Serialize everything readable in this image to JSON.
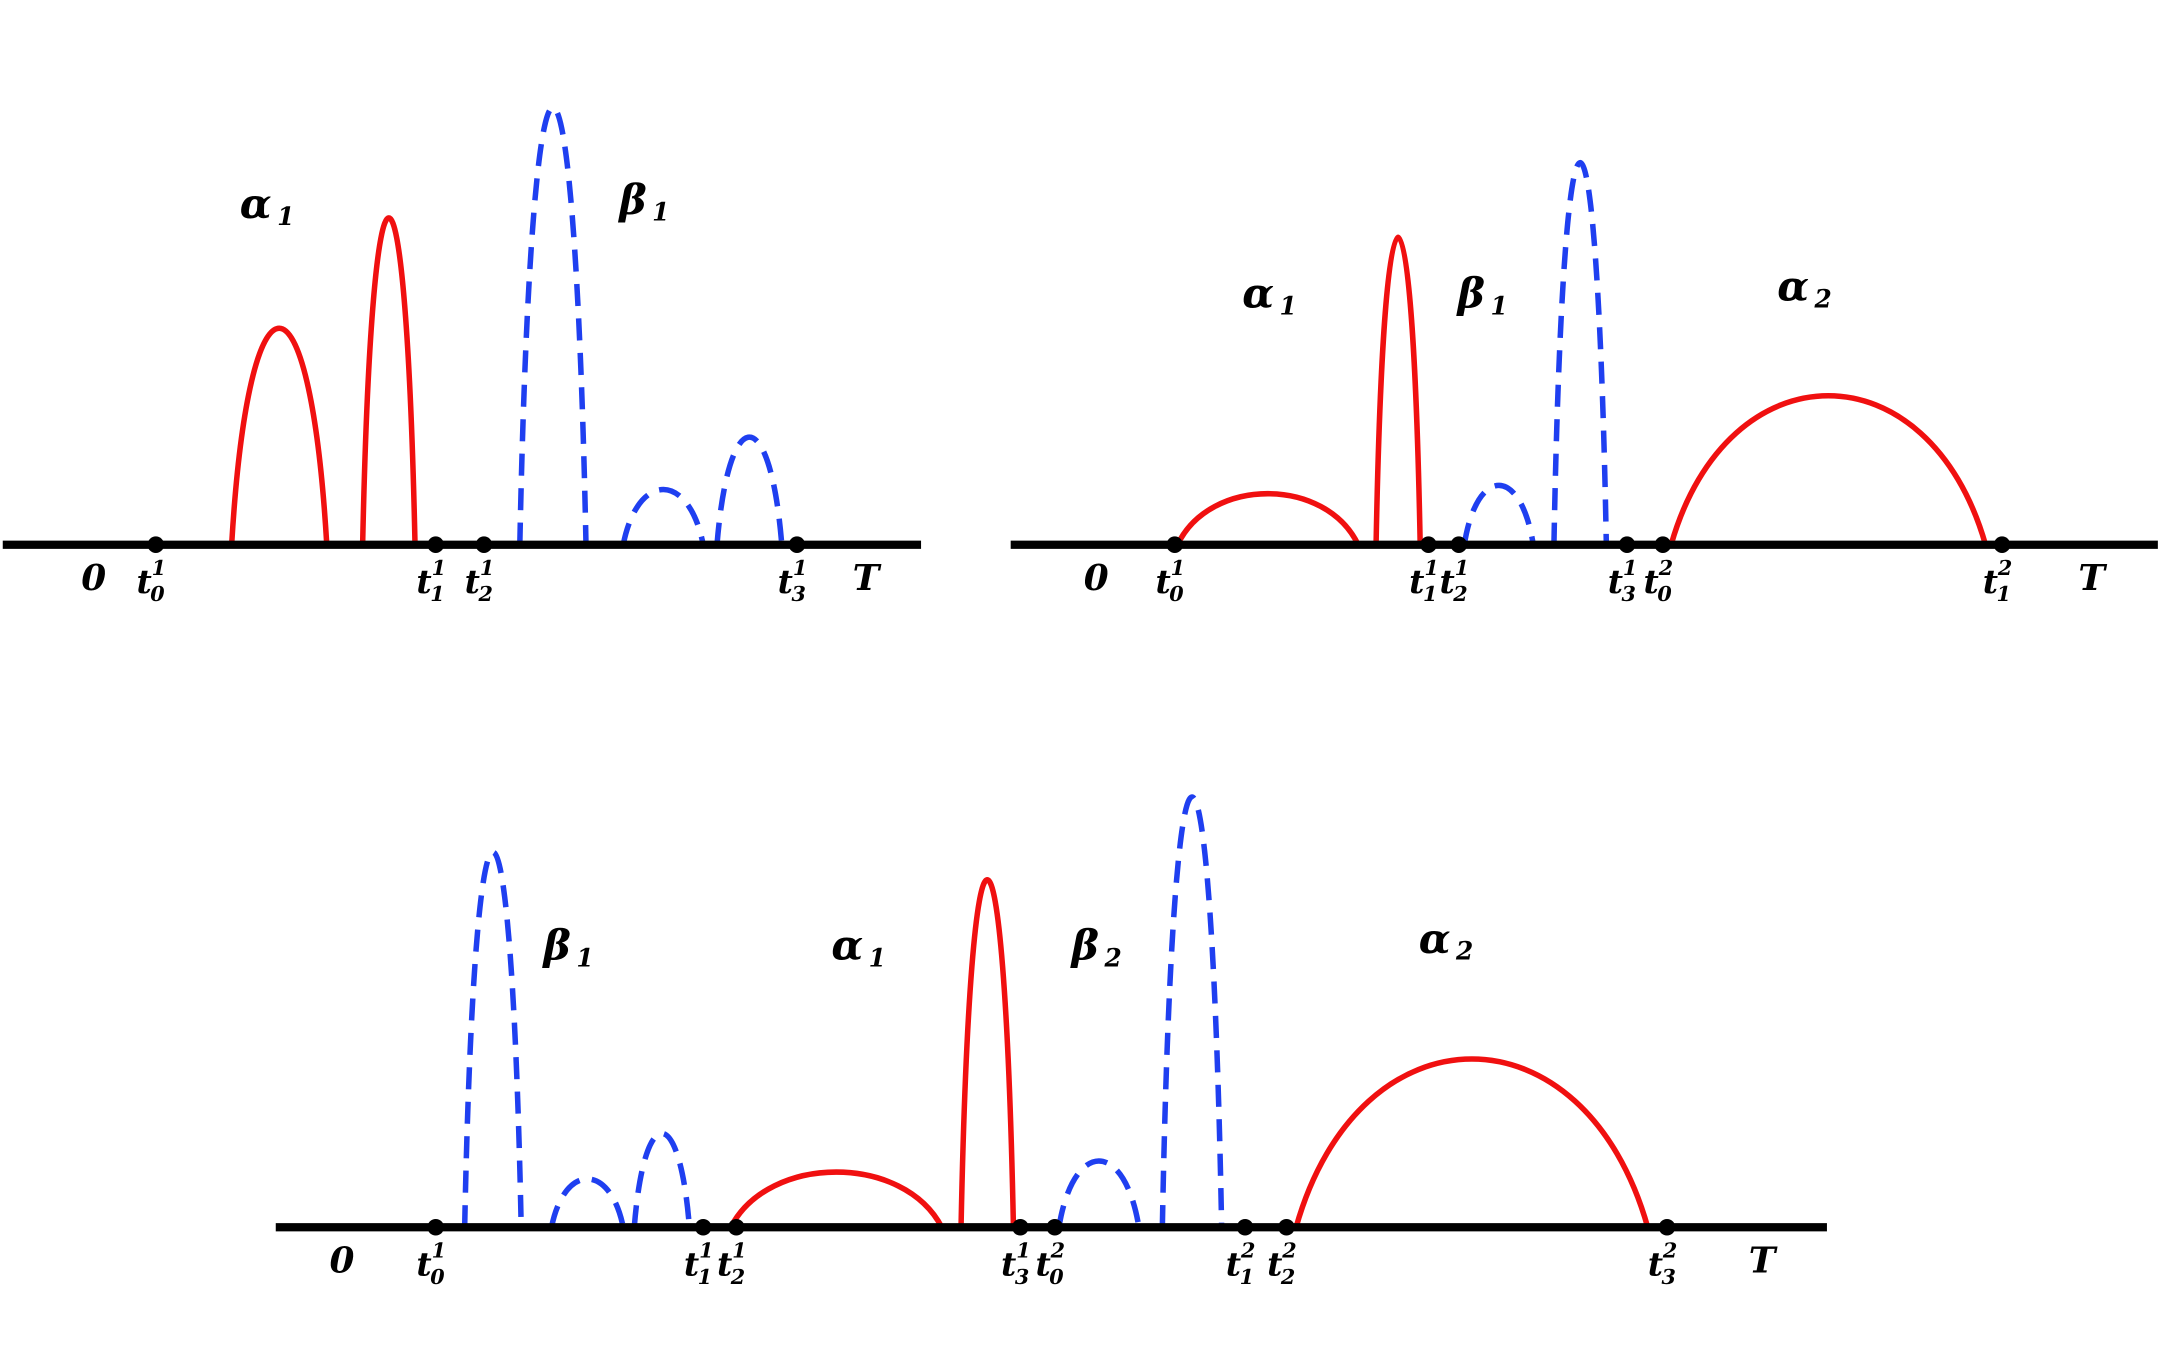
{
  "panels": [
    {
      "zero": "0",
      "end": "T",
      "ticks": [
        {
          "base": "t",
          "sub": "0",
          "sup": "1"
        },
        {
          "base": "t",
          "sub": "1",
          "sup": "1"
        },
        {
          "base": "t",
          "sub": "2",
          "sup": "1"
        },
        {
          "base": "t",
          "sub": "3",
          "sup": "1"
        }
      ],
      "phases": [
        {
          "symbol": "α",
          "sub": "1"
        },
        {
          "symbol": "β",
          "sub": "1"
        }
      ]
    },
    {
      "zero": "0",
      "end": "T",
      "ticks": [
        {
          "base": "t",
          "sub": "0",
          "sup": "1"
        },
        {
          "base": "t",
          "sub": "1",
          "sup": "1"
        },
        {
          "base": "t",
          "sub": "2",
          "sup": "1"
        },
        {
          "base": "t",
          "sub": "3",
          "sup": "1"
        },
        {
          "base": "t",
          "sub": "0",
          "sup": "2"
        },
        {
          "base": "t",
          "sub": "1",
          "sup": "2"
        }
      ],
      "phases": [
        {
          "symbol": "α",
          "sub": "1"
        },
        {
          "symbol": "β",
          "sub": "1"
        },
        {
          "symbol": "α",
          "sub": "2"
        }
      ]
    },
    {
      "zero": "0",
      "end": "T",
      "ticks": [
        {
          "base": "t",
          "sub": "0",
          "sup": "1"
        },
        {
          "base": "t",
          "sub": "1",
          "sup": "1"
        },
        {
          "base": "t",
          "sub": "2",
          "sup": "1"
        },
        {
          "base": "t",
          "sub": "3",
          "sup": "1"
        },
        {
          "base": "t",
          "sub": "0",
          "sup": "2"
        },
        {
          "base": "t",
          "sub": "1",
          "sup": "2"
        },
        {
          "base": "t",
          "sub": "2",
          "sup": "2"
        },
        {
          "base": "t",
          "sub": "3",
          "sup": "2"
        }
      ],
      "phases": [
        {
          "symbol": "β",
          "sub": "1"
        },
        {
          "symbol": "α",
          "sub": "1"
        },
        {
          "symbol": "β",
          "sub": "2"
        },
        {
          "symbol": "α",
          "sub": "2"
        }
      ]
    }
  ]
}
